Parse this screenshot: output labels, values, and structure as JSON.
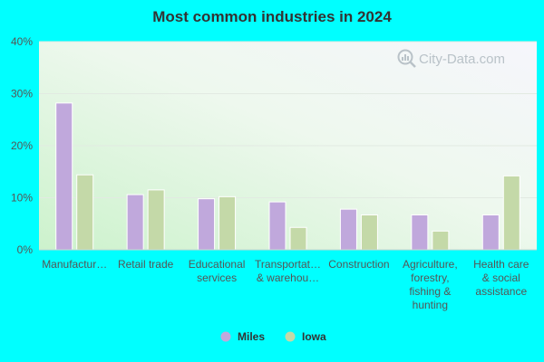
{
  "chart_data": {
    "type": "bar",
    "title": "Most common industries in 2024",
    "categories": [
      [
        "Manufactur…"
      ],
      [
        "Retail trade"
      ],
      [
        "Educational",
        "services"
      ],
      [
        "Transportat…",
        "& warehou…"
      ],
      [
        "Construction"
      ],
      [
        "Agriculture,",
        "forestry,",
        "fishing &",
        "hunting"
      ],
      [
        "Health care",
        "& social",
        "assistance"
      ]
    ],
    "series": [
      {
        "name": "Miles",
        "color": "#c0a8dc",
        "values": [
          28.2,
          10.6,
          9.8,
          9.2,
          7.8,
          6.7,
          6.7
        ]
      },
      {
        "name": "Iowa",
        "color": "#c4d9a8",
        "values": [
          14.4,
          11.5,
          10.2,
          4.3,
          6.7,
          3.6,
          14.2
        ]
      }
    ],
    "ylim": [
      0,
      40
    ],
    "yticks": [
      0,
      10,
      20,
      30,
      40
    ],
    "ytick_labels": [
      "0%",
      "10%",
      "20%",
      "30%",
      "40%"
    ],
    "xlabel": "",
    "ylabel": "",
    "grid": true,
    "legend_position": "bottom-center"
  },
  "watermark": {
    "text": "City-Data.com",
    "icon": "city-data-logo-icon"
  }
}
